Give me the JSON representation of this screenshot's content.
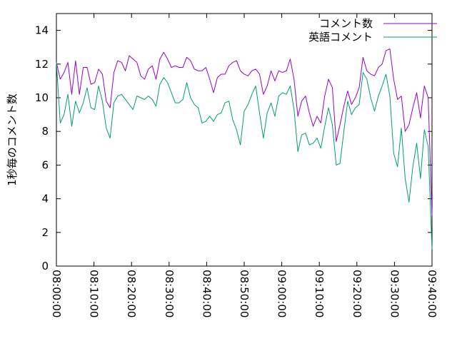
{
  "chart_data": {
    "type": "line",
    "ylabel": "1秒毎のコメント数",
    "ylim": [
      0,
      15
    ],
    "yticks": [
      0,
      2,
      4,
      6,
      8,
      10,
      12,
      14
    ],
    "xlim_minutes": [
      0,
      100
    ],
    "xtick_labels": [
      "08:00:00",
      "08:10:00",
      "08:20:00",
      "08:30:00",
      "08:40:00",
      "08:50:00",
      "09:00:00",
      "09:10:00",
      "09:20:00",
      "09:30:00",
      "09:40:00"
    ],
    "legend_position": "top-right",
    "grid": false,
    "series": [
      {
        "name": "コメント数",
        "color": "#9400d3",
        "values": [
          12.1,
          11.1,
          11.5,
          12.1,
          10.2,
          12.2,
          10.2,
          11.8,
          11.8,
          10.8,
          10.9,
          11.7,
          11.4,
          9.8,
          9.4,
          11.5,
          12.2,
          12.1,
          11.6,
          12.5,
          12.3,
          12.1,
          11.3,
          11.1,
          11.7,
          11.9,
          11.1,
          12.3,
          12.7,
          12.3,
          11.8,
          11.9,
          11.8,
          11.8,
          12.4,
          12.2,
          11.7,
          11.6,
          11.6,
          11.8,
          11.1,
          10.3,
          11.2,
          11.4,
          11.4,
          11.9,
          12.1,
          12.2,
          11.6,
          11.4,
          11.3,
          11.6,
          11.7,
          11.4,
          10.2,
          10.7,
          11.6,
          11.0,
          11.6,
          11.5,
          11.6,
          12.3,
          11.1,
          8.9,
          9.8,
          10.1,
          9.1,
          8.3,
          8.9,
          8.5,
          10.1,
          11.1,
          10.6,
          7.4,
          8.4,
          9.5,
          10.4,
          9.6,
          10.0,
          10.6,
          12.4,
          11.6,
          11.4,
          11.3,
          11.8,
          12.0,
          12.8,
          12.9,
          11.1,
          9.9,
          10.1,
          8.0,
          8.4,
          9.4,
          10.3,
          8.8,
          10.7,
          10.0,
          3.0
        ]
      },
      {
        "name": "英語コメント",
        "color": "#009e73",
        "values": [
          12.1,
          8.5,
          9.0,
          10.2,
          8.3,
          9.8,
          9.1,
          9.7,
          10.6,
          9.4,
          9.3,
          10.7,
          9.8,
          8.2,
          7.6,
          9.7,
          10.1,
          10.2,
          9.9,
          9.6,
          9.3,
          10.1,
          10.0,
          9.9,
          10.1,
          9.9,
          9.5,
          10.8,
          11.2,
          10.9,
          10.3,
          9.7,
          9.7,
          9.9,
          10.9,
          10.0,
          9.6,
          9.4,
          8.5,
          8.6,
          8.9,
          8.6,
          9.0,
          9.1,
          9.7,
          9.8,
          8.7,
          8.1,
          7.2,
          9.2,
          9.6,
          10.2,
          10.7,
          9.1,
          7.6,
          9.1,
          9.7,
          8.9,
          10.1,
          10.3,
          10.2,
          10.7,
          9.3,
          6.8,
          7.8,
          7.9,
          7.2,
          7.3,
          7.6,
          7.0,
          8.3,
          9.4,
          8.4,
          6.0,
          6.1,
          8.0,
          9.8,
          9.0,
          9.4,
          9.6,
          11.5,
          11.1,
          10.0,
          9.2,
          10.1,
          10.7,
          11.4,
          10.1,
          6.7,
          5.9,
          8.2,
          5.2,
          3.8,
          5.9,
          7.3,
          5.2,
          8.1,
          7.1,
          1.0
        ]
      }
    ]
  }
}
